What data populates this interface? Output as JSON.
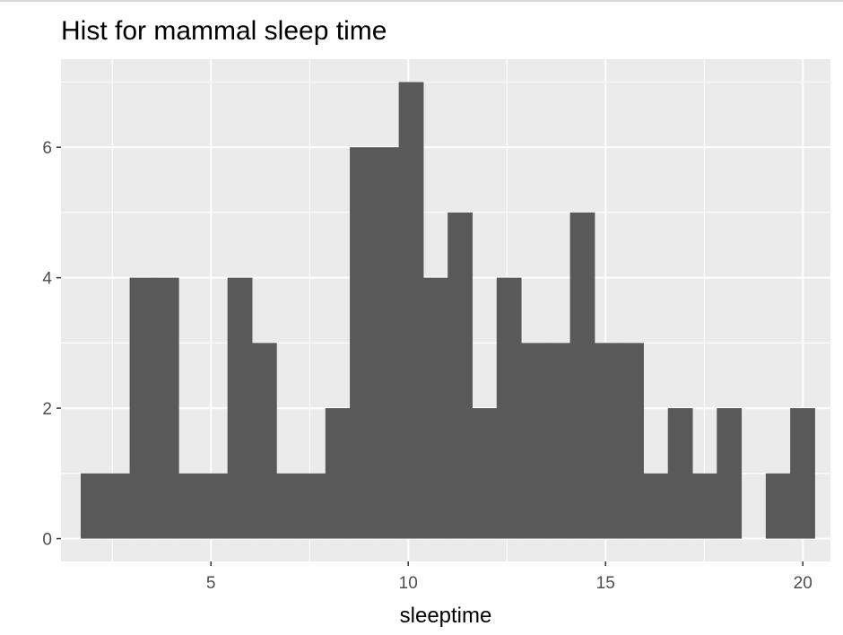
{
  "chart_data": {
    "type": "bar",
    "title": "Hist for mammal sleep time",
    "xlabel": "sleeptime",
    "ylabel": "",
    "bin_width": 0.62,
    "bins": [
      {
        "x0": 1.7,
        "count": 1
      },
      {
        "x0": 2.32,
        "count": 1
      },
      {
        "x0": 2.94,
        "count": 4
      },
      {
        "x0": 3.56,
        "count": 4
      },
      {
        "x0": 4.18,
        "count": 1
      },
      {
        "x0": 4.8,
        "count": 1
      },
      {
        "x0": 5.42,
        "count": 4
      },
      {
        "x0": 6.04,
        "count": 3
      },
      {
        "x0": 6.66,
        "count": 1
      },
      {
        "x0": 7.28,
        "count": 1
      },
      {
        "x0": 7.9,
        "count": 2
      },
      {
        "x0": 8.52,
        "count": 6
      },
      {
        "x0": 9.14,
        "count": 6
      },
      {
        "x0": 9.76,
        "count": 7
      },
      {
        "x0": 10.38,
        "count": 4
      },
      {
        "x0": 11.0,
        "count": 5
      },
      {
        "x0": 11.62,
        "count": 2
      },
      {
        "x0": 12.24,
        "count": 4
      },
      {
        "x0": 12.86,
        "count": 3
      },
      {
        "x0": 13.48,
        "count": 3
      },
      {
        "x0": 14.1,
        "count": 5
      },
      {
        "x0": 14.72,
        "count": 3
      },
      {
        "x0": 15.34,
        "count": 3
      },
      {
        "x0": 15.96,
        "count": 1
      },
      {
        "x0": 16.58,
        "count": 2
      },
      {
        "x0": 17.2,
        "count": 1
      },
      {
        "x0": 17.82,
        "count": 2
      },
      {
        "x0": 18.44,
        "count": 0
      },
      {
        "x0": 19.06,
        "count": 1
      },
      {
        "x0": 19.68,
        "count": 2
      }
    ],
    "xlim": [
      1.2,
      20.7
    ],
    "ylim": [
      -0.35,
      7.35
    ],
    "x_ticks": [
      5,
      10,
      15,
      20
    ],
    "x_tick_labels": [
      "5",
      "10",
      "15",
      "20"
    ],
    "y_ticks": [
      0,
      2,
      4,
      6
    ],
    "y_tick_labels": [
      "0",
      "2",
      "4",
      "6"
    ],
    "grid": true,
    "legend": "none",
    "colors": {
      "panel_bg": "#ebebeb",
      "grid_major": "#ffffff",
      "bar_fill": "#595959",
      "tick_text": "#4d4d4d",
      "tick_mark": "#333333"
    }
  }
}
